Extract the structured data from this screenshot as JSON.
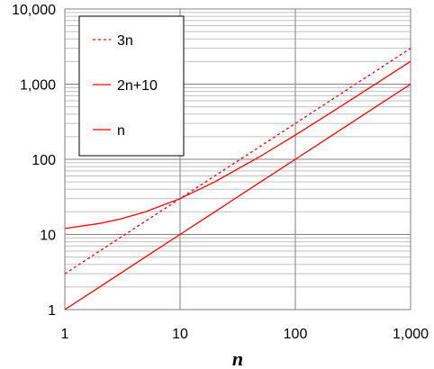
{
  "chart_data": {
    "type": "line",
    "title": "",
    "xlabel": "n",
    "ylabel": "",
    "x_scale": "log",
    "y_scale": "log",
    "xlim": [
      1,
      1000
    ],
    "ylim": [
      1,
      10000
    ],
    "grid": true,
    "legend_position": "top-left",
    "x_ticks": [
      1,
      10,
      100,
      1000
    ],
    "x_tick_labels": [
      "1",
      "10",
      "100",
      "1,000"
    ],
    "y_ticks": [
      1,
      10,
      100,
      1000,
      10000
    ],
    "y_tick_labels": [
      "1",
      "10",
      "100",
      "1,000",
      "10,000"
    ],
    "series": [
      {
        "name": "3n",
        "style": "dotted",
        "color": "#ff0000",
        "x": [
          1,
          2,
          3,
          5,
          10,
          20,
          50,
          100,
          200,
          500,
          1000
        ],
        "y": [
          3,
          6,
          9,
          15,
          30,
          60,
          150,
          300,
          600,
          1500,
          3000
        ]
      },
      {
        "name": "2n+10",
        "style": "solid",
        "color": "#ff0000",
        "x": [
          1,
          2,
          3,
          5,
          10,
          20,
          50,
          100,
          200,
          500,
          1000
        ],
        "y": [
          12,
          14,
          16,
          20,
          30,
          50,
          110,
          210,
          410,
          1010,
          2010
        ]
      },
      {
        "name": "n",
        "style": "solid",
        "color": "#ff0000",
        "x": [
          1,
          2,
          3,
          5,
          10,
          20,
          50,
          100,
          200,
          500,
          1000
        ],
        "y": [
          1,
          2,
          3,
          5,
          10,
          20,
          50,
          100,
          200,
          500,
          1000
        ]
      }
    ]
  }
}
